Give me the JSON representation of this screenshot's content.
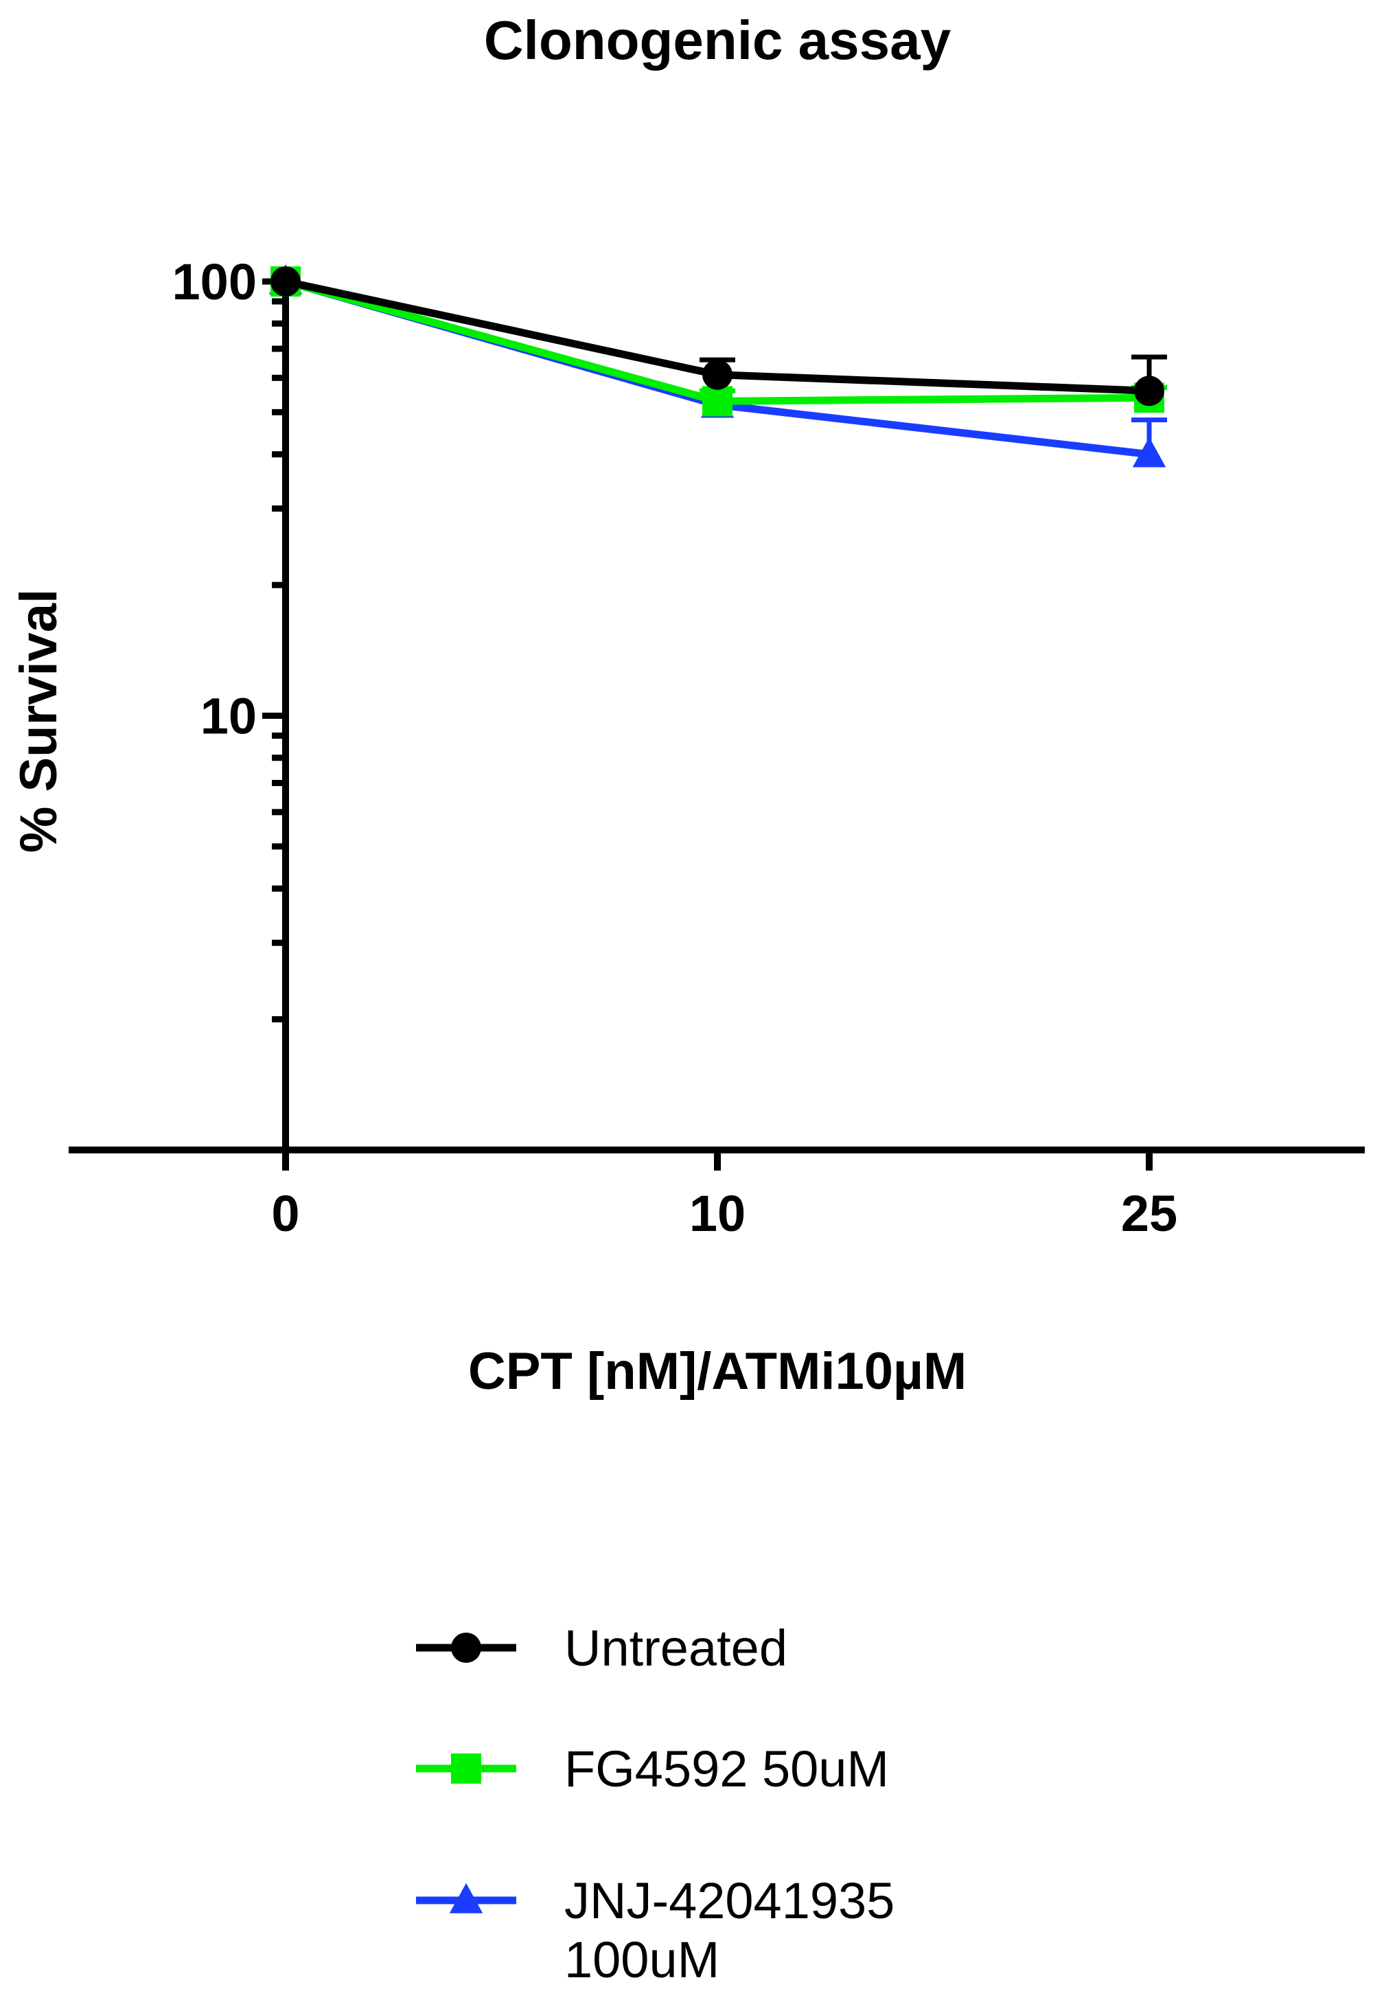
{
  "chart_data": {
    "type": "line",
    "title": "Clonogenic assay",
    "xlabel": "CPT [nM]/ATMi10µM",
    "ylabel": "% Survival",
    "y_scale": "log",
    "ylim": [
      1,
      100
    ],
    "x_ticks": [
      "0",
      "10",
      "25"
    ],
    "y_tick_labels": [
      "100",
      "10"
    ],
    "grid": false,
    "legend_position": "bottom",
    "series": [
      {
        "name": "Untreated",
        "color": "#000000",
        "marker": "circle",
        "x": [
          "0",
          "10",
          "25"
        ],
        "values": [
          100,
          61,
          56
        ],
        "error_upper": [
          100,
          66,
          67
        ]
      },
      {
        "name": "FG4592 50uM",
        "color": "#00ee00",
        "marker": "square",
        "x": [
          "0",
          "10",
          "25"
        ],
        "values": [
          100,
          53,
          54
        ],
        "error_upper": [
          100,
          56,
          57
        ]
      },
      {
        "name": "JNJ-42041935 100uM",
        "color": "#1a3cff",
        "marker": "triangle",
        "x": [
          "0",
          "10",
          "25"
        ],
        "values": [
          100,
          52,
          40
        ],
        "error_upper": [
          100,
          56,
          48
        ]
      }
    ]
  }
}
